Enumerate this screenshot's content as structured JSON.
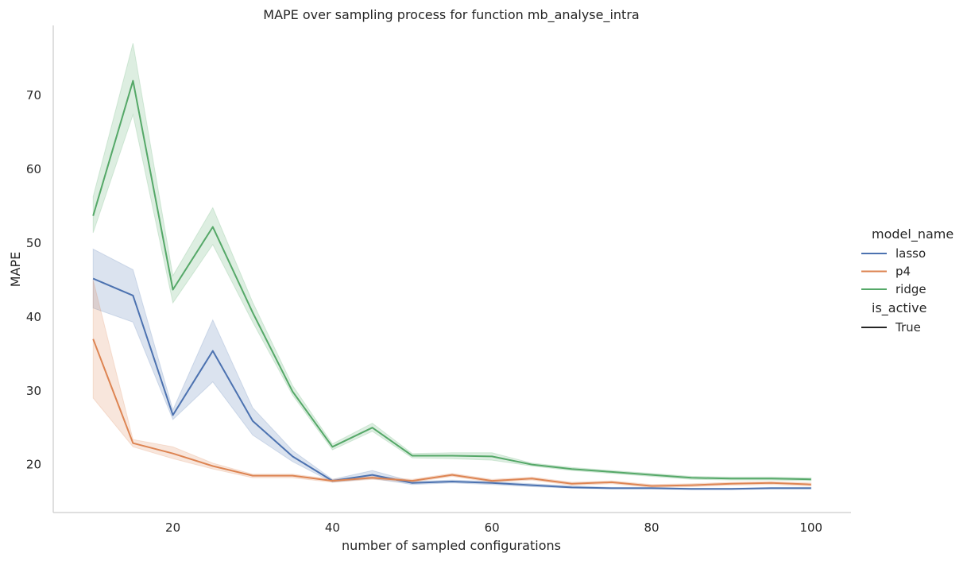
{
  "chart_data": {
    "type": "line",
    "title": "MAPE over sampling process for function mb_analyse_intra",
    "xlabel": "number of sampled configurations",
    "ylabel": "MAPE",
    "xlim": [
      5,
      105
    ],
    "ylim": [
      13.5,
      79.5
    ],
    "x_ticks": [
      20,
      40,
      60,
      80,
      100
    ],
    "y_ticks": [
      20,
      30,
      40,
      50,
      60,
      70
    ],
    "grid": false,
    "legend_position": "right",
    "legend": {
      "hue_title": "model_name",
      "style_title": "is_active",
      "style_entries": [
        "True"
      ]
    },
    "x": [
      10,
      15,
      20,
      25,
      30,
      35,
      40,
      45,
      50,
      55,
      60,
      65,
      70,
      75,
      80,
      85,
      90,
      95,
      100
    ],
    "series": [
      {
        "name": "lasso",
        "color": "#4c72b0",
        "values": [
          45.2,
          42.9,
          26.7,
          35.4,
          25.9,
          21.1,
          17.8,
          18.6,
          17.5,
          17.7,
          17.5,
          17.2,
          16.9,
          16.8,
          16.8,
          16.7,
          16.7,
          16.8,
          16.8
        ],
        "lower": [
          41.2,
          39.3,
          26.1,
          31.2,
          24.0,
          20.4,
          17.6,
          18.1,
          17.3,
          17.5,
          17.3,
          17.0,
          16.8,
          16.7,
          16.7,
          16.6,
          16.6,
          16.7,
          16.7
        ],
        "upper": [
          49.2,
          46.4,
          27.4,
          39.6,
          27.7,
          21.9,
          18.0,
          19.2,
          17.7,
          17.9,
          17.7,
          17.4,
          17.1,
          16.9,
          16.9,
          16.8,
          16.8,
          16.9,
          16.9
        ]
      },
      {
        "name": "p4",
        "color": "#dd8452",
        "values": [
          37.0,
          22.9,
          21.5,
          19.8,
          18.5,
          18.5,
          17.8,
          18.2,
          17.8,
          18.6,
          17.8,
          18.1,
          17.4,
          17.6,
          17.1,
          17.2,
          17.4,
          17.5,
          17.3
        ],
        "lower": [
          29.0,
          22.4,
          20.8,
          19.4,
          18.2,
          18.2,
          17.6,
          18.0,
          17.6,
          18.4,
          17.6,
          17.9,
          17.2,
          17.4,
          16.9,
          17.0,
          17.2,
          17.3,
          17.1
        ],
        "upper": [
          45.0,
          23.4,
          22.4,
          20.2,
          18.7,
          18.7,
          18.0,
          18.4,
          18.0,
          18.8,
          18.0,
          18.3,
          17.6,
          17.8,
          17.3,
          17.4,
          17.6,
          17.7,
          17.5
        ]
      },
      {
        "name": "ridge",
        "color": "#55a868",
        "values": [
          53.7,
          72.0,
          43.7,
          52.2,
          40.6,
          29.9,
          22.4,
          25.0,
          21.2,
          21.2,
          21.1,
          20.0,
          19.4,
          19.0,
          18.6,
          18.2,
          18.1,
          18.1,
          18.0
        ],
        "lower": [
          51.4,
          67.4,
          41.9,
          49.8,
          39.3,
          29.4,
          22.0,
          24.5,
          20.9,
          20.8,
          20.6,
          19.8,
          19.2,
          18.8,
          18.4,
          18.0,
          17.9,
          17.9,
          17.8
        ],
        "upper": [
          56.3,
          77.1,
          45.6,
          54.8,
          42.0,
          30.7,
          22.8,
          25.6,
          21.5,
          21.6,
          21.6,
          20.2,
          19.6,
          19.2,
          18.8,
          18.4,
          18.3,
          18.3,
          18.2
        ]
      }
    ]
  }
}
